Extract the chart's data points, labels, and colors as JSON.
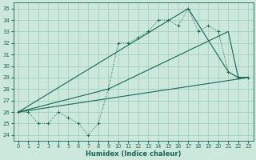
{
  "xlabel": "Humidex (Indice chaleur)",
  "xlim": [
    -0.5,
    23.5
  ],
  "ylim": [
    23.5,
    35.5
  ],
  "yticks": [
    24,
    25,
    26,
    27,
    28,
    29,
    30,
    31,
    32,
    33,
    34,
    35
  ],
  "xticks": [
    0,
    1,
    2,
    3,
    4,
    5,
    6,
    7,
    8,
    9,
    10,
    11,
    12,
    13,
    14,
    15,
    16,
    17,
    18,
    19,
    20,
    21,
    22,
    23
  ],
  "bg_color": "#cce8dc",
  "grid_color": "#99ccbb",
  "line_color": "#1a6655",
  "line1_x": [
    0,
    1,
    2,
    3,
    4,
    5,
    6,
    7,
    8,
    9,
    10,
    11,
    12,
    13,
    14,
    15,
    16,
    17,
    18,
    19,
    20,
    21,
    22,
    23
  ],
  "line1_y": [
    26,
    26,
    25,
    25,
    26,
    25.5,
    25,
    24,
    25,
    28,
    32,
    32,
    32.5,
    33,
    34,
    34,
    33.5,
    35,
    33,
    33.5,
    33,
    29.5,
    29,
    29
  ],
  "line2_x": [
    0,
    23
  ],
  "line2_y": [
    26,
    29
  ],
  "line3_x": [
    0,
    9,
    21,
    22,
    23
  ],
  "line3_y": [
    26,
    28,
    33,
    29,
    29
  ],
  "line4_x": [
    0,
    17,
    21,
    22,
    23
  ],
  "line4_y": [
    26,
    35,
    29.5,
    29,
    29
  ]
}
